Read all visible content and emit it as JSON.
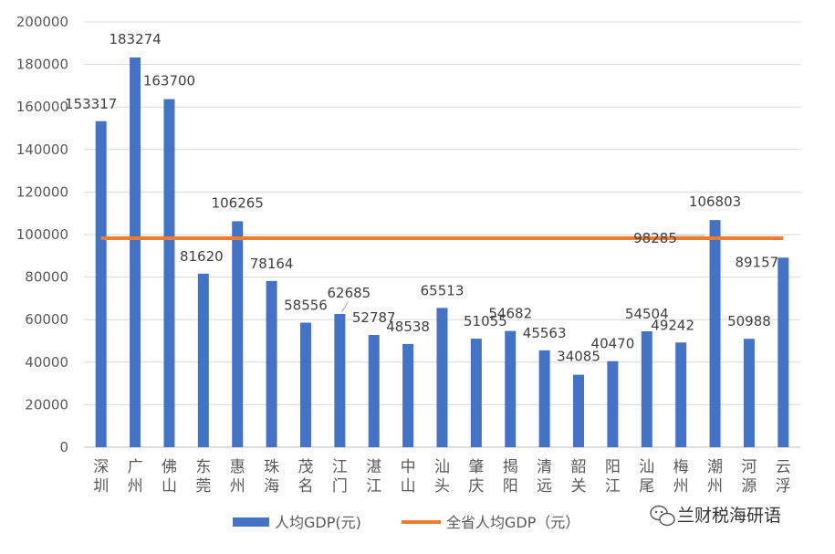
{
  "chart_data": {
    "type": "bar",
    "categories": [
      "深圳",
      "广州",
      "佛山",
      "东莞",
      "惠州",
      "珠海",
      "茂名",
      "江门",
      "湛江",
      "中山",
      "汕头",
      "肇庆",
      "揭阳",
      "清远",
      "韶关",
      "阳江",
      "汕尾",
      "梅州",
      "潮州",
      "河源",
      "云浮"
    ],
    "series": [
      {
        "name": "人均GDP(元)",
        "type": "bar",
        "color": "#4472C4",
        "values": [
          153317,
          183274,
          163700,
          81620,
          106265,
          78164,
          58556,
          62685,
          52787,
          48538,
          65513,
          51055,
          54682,
          45563,
          34085,
          40470,
          54504,
          49242,
          106803,
          50988,
          89157
        ]
      },
      {
        "name": "全省人均GDP（元）",
        "type": "line",
        "color": "#ED7D31",
        "value": 98285,
        "label": "98285"
      }
    ],
    "value_labels": [
      "153317",
      "183274",
      "163700",
      "81620",
      "106265",
      "78164",
      "58556",
      "62685",
      "52787",
      "48538",
      "65513",
      "51055",
      "54682",
      "45563",
      "34085",
      "40470",
      "54504",
      "49242",
      "106803",
      "50988",
      "89157"
    ],
    "y_ticks": [
      "0",
      "20000",
      "40000",
      "60000",
      "80000",
      "100000",
      "120000",
      "140000",
      "160000",
      "180000",
      "200000"
    ],
    "ylim": [
      0,
      200000
    ],
    "grid": true,
    "legend_position": "bottom",
    "title": "",
    "xlabel": "",
    "ylabel": ""
  },
  "watermark": {
    "text": "兰财税海研语",
    "icon": "wechat-icon"
  }
}
